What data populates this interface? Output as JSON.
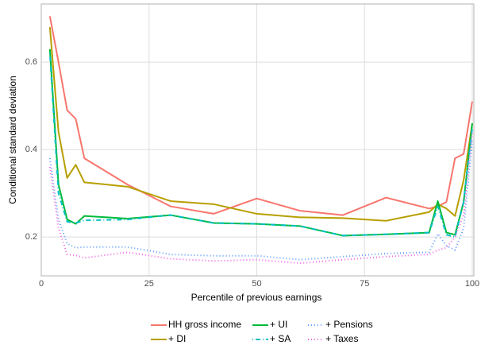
{
  "chart_data": {
    "type": "line",
    "x_label": "Percentile of previous earnings",
    "y_label": "Conditional standard deviation",
    "x": [
      2,
      4,
      6,
      8,
      10,
      20,
      30,
      40,
      50,
      60,
      70,
      80,
      90,
      92,
      94,
      96,
      98,
      100
    ],
    "series": [
      {
        "name": "HH gross income",
        "color": "#F8766D",
        "dash": "solid",
        "values": [
          0.705,
          0.6,
          0.49,
          0.47,
          0.38,
          0.32,
          0.27,
          0.253,
          0.288,
          0.26,
          0.25,
          0.29,
          0.265,
          0.27,
          0.28,
          0.38,
          0.39,
          0.51
        ]
      },
      {
        "name": "+ DI",
        "color": "#B79F00",
        "dash": "solid",
        "values": [
          0.68,
          0.44,
          0.335,
          0.365,
          0.325,
          0.315,
          0.282,
          0.275,
          0.253,
          0.245,
          0.243,
          0.237,
          0.257,
          0.275,
          0.265,
          0.248,
          0.33,
          0.46
        ]
      },
      {
        "name": "+ UI",
        "color": "#00BA38",
        "dash": "solid",
        "values": [
          0.63,
          0.32,
          0.24,
          0.23,
          0.248,
          0.242,
          0.25,
          0.232,
          0.23,
          0.225,
          0.203,
          0.206,
          0.21,
          0.282,
          0.21,
          0.205,
          0.28,
          0.46
        ]
      },
      {
        "name": "+ SA",
        "color": "#00BFC4",
        "dash": "dotdash",
        "values": [
          0.62,
          0.3,
          0.235,
          0.232,
          0.238,
          0.24,
          0.25,
          0.232,
          0.23,
          0.225,
          0.203,
          0.206,
          0.21,
          0.27,
          0.205,
          0.2,
          0.28,
          0.45
        ]
      },
      {
        "name": "+ Pensions",
        "color": "#619CFF",
        "dash": "dotted",
        "values": [
          0.38,
          0.24,
          0.185,
          0.175,
          0.177,
          0.177,
          0.16,
          0.157,
          0.157,
          0.148,
          0.155,
          0.162,
          0.165,
          0.207,
          0.18,
          0.17,
          0.22,
          0.42
        ]
      },
      {
        "name": "+ Taxes",
        "color": "#F564E3",
        "dash": "dotted",
        "values": [
          0.36,
          0.22,
          0.16,
          0.158,
          0.152,
          0.165,
          0.15,
          0.145,
          0.148,
          0.14,
          0.148,
          0.155,
          0.16,
          0.17,
          0.175,
          0.2,
          0.25,
          0.44
        ]
      }
    ],
    "xlim": [
      0,
      100
    ],
    "xticks": [
      0,
      25,
      50,
      75,
      100
    ],
    "ylim": [
      0.111,
      0.733
    ],
    "yticks": [
      0.2,
      0.4,
      0.6
    ],
    "grid": true,
    "legend": "bottom"
  }
}
